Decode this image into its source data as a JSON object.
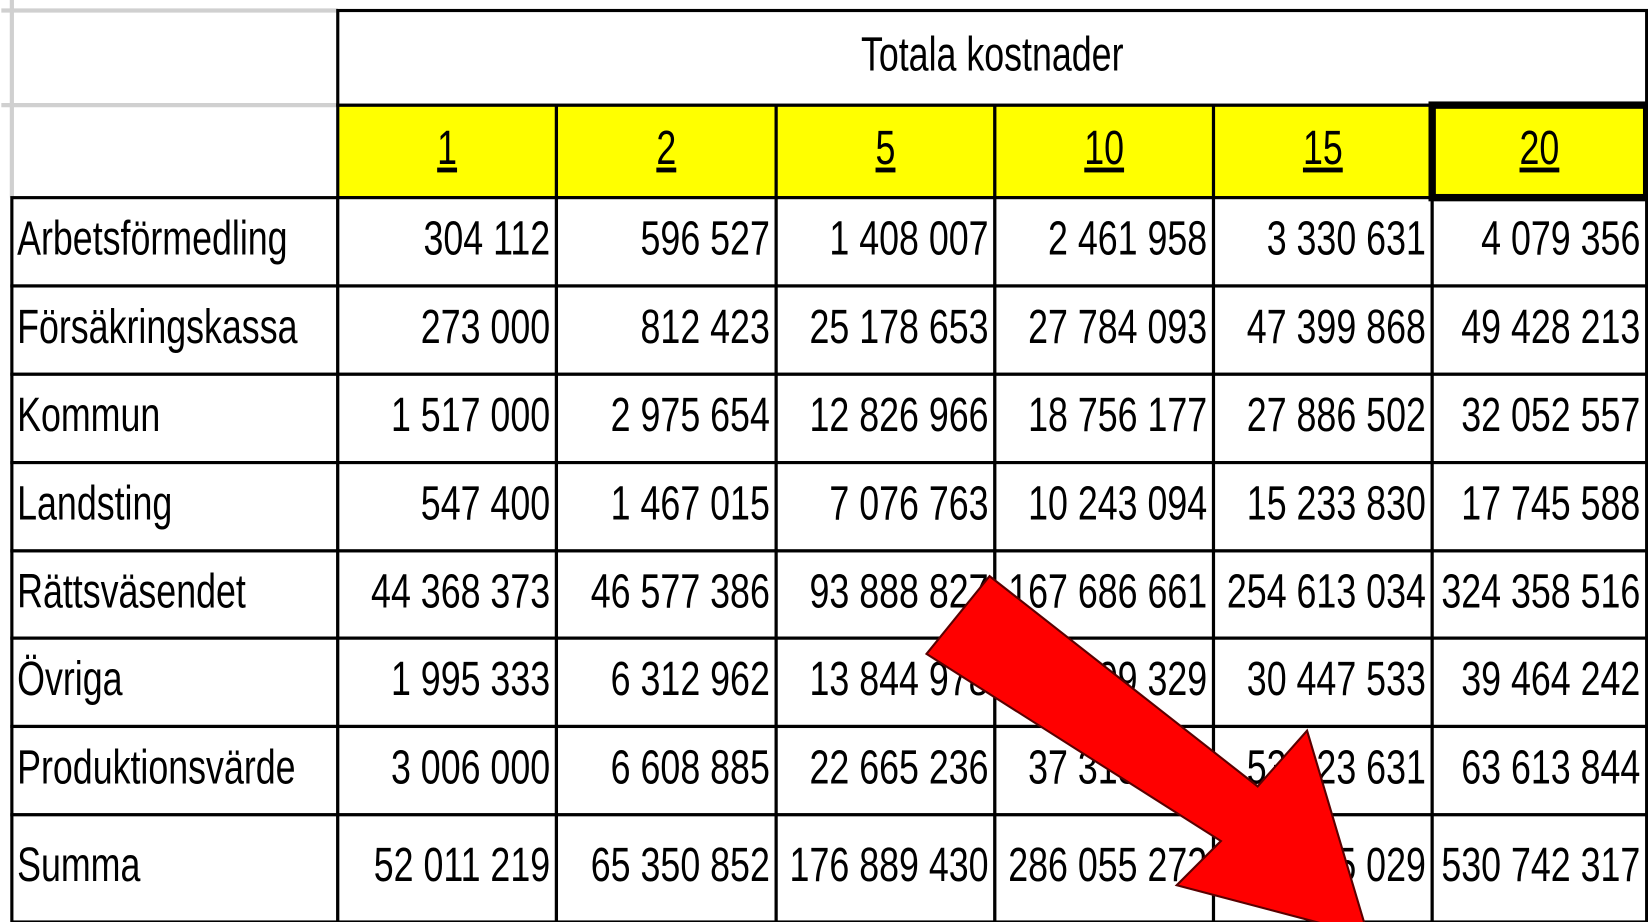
{
  "table": {
    "title": "Totala kostnader",
    "columns": [
      "1",
      "2",
      "5",
      "10",
      "15",
      "20"
    ],
    "rows": [
      {
        "label": "Arbetsförmedling",
        "values": [
          "304 112",
          "596 527",
          "1 408 007",
          "2 461 958",
          "3 330 631",
          "4 079 356"
        ]
      },
      {
        "label": "Försäkringskassa",
        "values": [
          "273 000",
          "812 423",
          "25 178 653",
          "27 784 093",
          "47 399 868",
          "49 428 213"
        ]
      },
      {
        "label": "Kommun",
        "values": [
          "1 517 000",
          "2 975 654",
          "12 826 966",
          "18 756 177",
          "27 886 502",
          "32 052 557"
        ]
      },
      {
        "label": "Landsting",
        "values": [
          "547 400",
          "1 467 015",
          "7 076 763",
          "10 243 094",
          "15 233 830",
          "17 745 588"
        ]
      },
      {
        "label": "Rättsväsendet",
        "values": [
          "44 368 373",
          "46 577 386",
          "93 888 827",
          "167 686 661",
          "254 613 034",
          "324 358 516"
        ]
      },
      {
        "label": "Övriga",
        "values": [
          "1 995 333",
          "6 312 962",
          "13 844 978",
          "21 809 329",
          "30 447 533",
          "39 464 242"
        ]
      },
      {
        "label": "Produktionsvärde",
        "values": [
          "3 006 000",
          "6 608 885",
          "22 665 236",
          "37 313 960",
          "53 123 631",
          "63 613 844"
        ]
      },
      {
        "label": "Summa",
        "values": [
          "52 011 219",
          "65 350 852",
          "176 889 430",
          "286 055 272",
          "432 035 029",
          "530 742 317"
        ]
      }
    ]
  }
}
